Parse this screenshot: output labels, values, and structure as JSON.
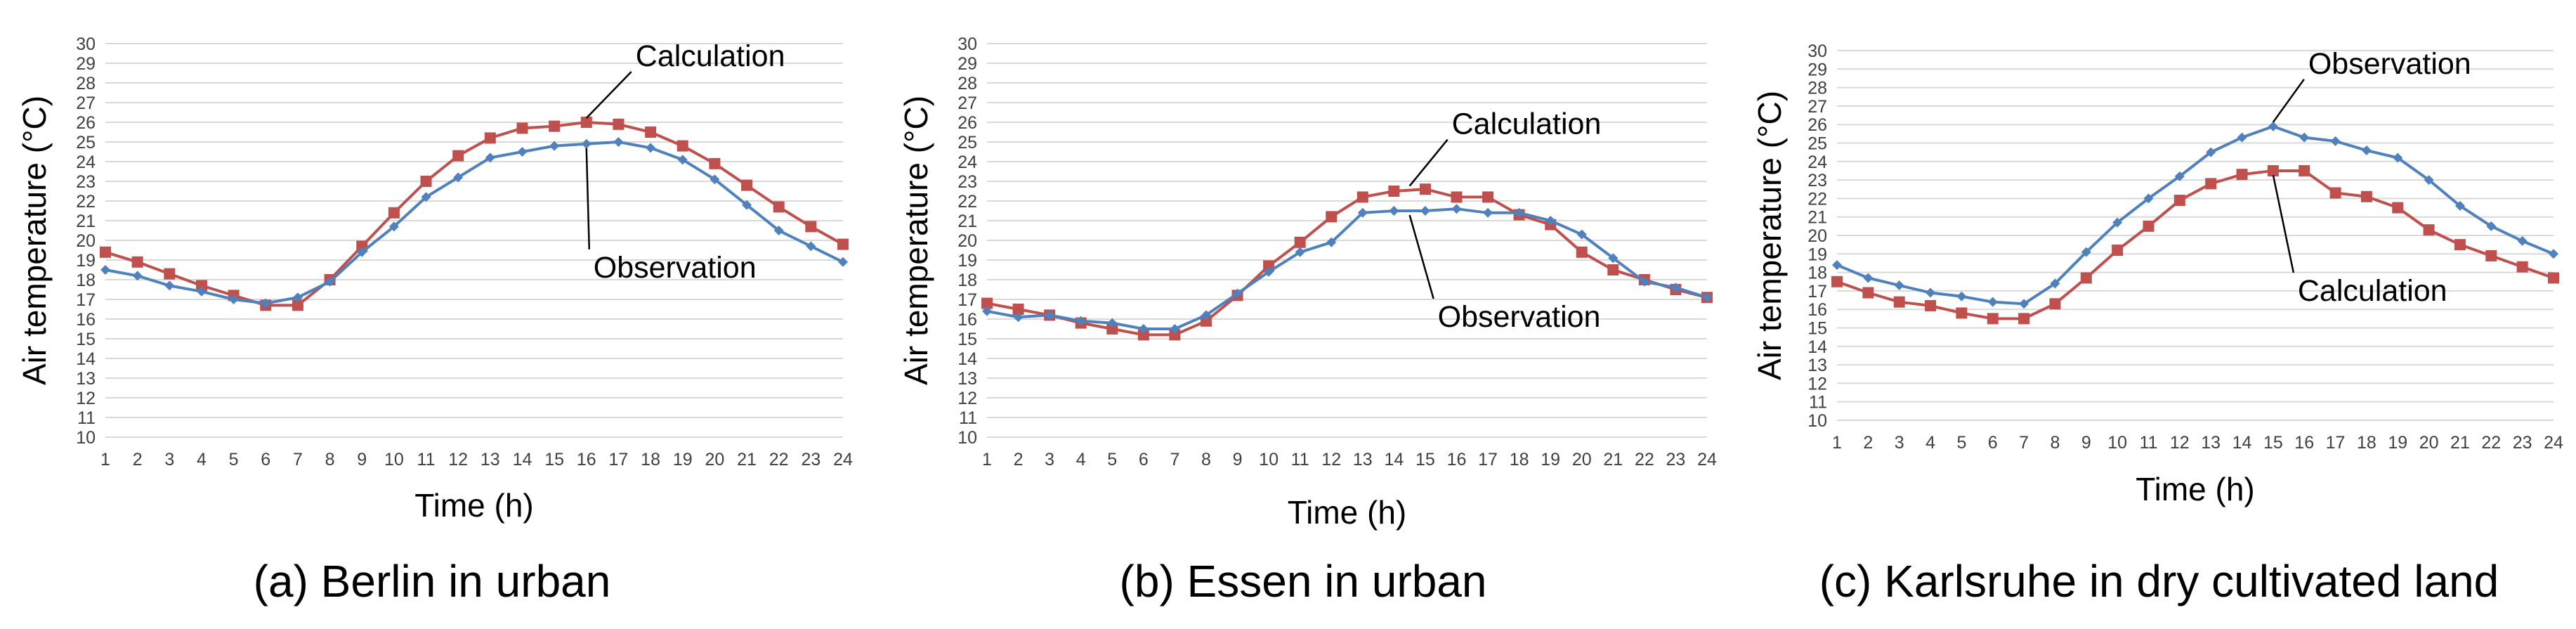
{
  "chart_data": [
    {
      "type": "line",
      "caption": "(a) Berlin in urban",
      "xlabel": "Time (h)",
      "ylabel": "Air temperature (°C)",
      "x": [
        1,
        2,
        3,
        4,
        5,
        6,
        7,
        8,
        9,
        10,
        11,
        12,
        13,
        14,
        15,
        16,
        17,
        18,
        19,
        20,
        21,
        22,
        23,
        24
      ],
      "ylim": [
        10,
        30
      ],
      "yticks": [
        10,
        11,
        12,
        13,
        14,
        15,
        16,
        17,
        18,
        19,
        20,
        21,
        22,
        23,
        24,
        25,
        26,
        27,
        28,
        29,
        30
      ],
      "grid": true,
      "series": [
        {
          "name": "Calculation",
          "color": "#C0504D",
          "marker": "square",
          "values": [
            19.4,
            18.9,
            18.3,
            17.7,
            17.2,
            16.7,
            16.7,
            18.0,
            19.7,
            21.4,
            23.0,
            24.3,
            25.2,
            25.7,
            25.8,
            26.0,
            25.9,
            25.5,
            24.8,
            23.9,
            22.8,
            21.7,
            20.7,
            19.8
          ]
        },
        {
          "name": "Observation",
          "color": "#4F81BD",
          "marker": "diamond",
          "values": [
            18.5,
            18.2,
            17.7,
            17.4,
            17.0,
            16.8,
            17.1,
            17.9,
            19.4,
            20.7,
            22.2,
            23.2,
            24.2,
            24.5,
            24.8,
            24.9,
            25.0,
            24.7,
            24.1,
            23.1,
            21.8,
            20.5,
            19.7,
            18.9
          ]
        }
      ],
      "annotations": [
        {
          "text": "Calculation",
          "series": "Calculation",
          "x": 16
        },
        {
          "text": "Observation",
          "series": "Observation",
          "x": 16
        }
      ]
    },
    {
      "type": "line",
      "caption": "(b) Essen in urban",
      "xlabel": "Time (h)",
      "ylabel": "Air temperature (°C)",
      "x": [
        1,
        2,
        3,
        4,
        5,
        6,
        7,
        8,
        9,
        10,
        11,
        12,
        13,
        14,
        15,
        16,
        17,
        18,
        19,
        20,
        21,
        22,
        23,
        24
      ],
      "ylim": [
        10,
        30
      ],
      "yticks": [
        10,
        11,
        12,
        13,
        14,
        15,
        16,
        17,
        18,
        19,
        20,
        21,
        22,
        23,
        24,
        25,
        26,
        27,
        28,
        29,
        30
      ],
      "grid": true,
      "series": [
        {
          "name": "Calculation",
          "color": "#C0504D",
          "marker": "square",
          "values": [
            16.8,
            16.5,
            16.2,
            15.8,
            15.5,
            15.2,
            15.2,
            15.9,
            17.2,
            18.7,
            19.9,
            21.2,
            22.2,
            22.5,
            22.6,
            22.2,
            22.2,
            21.3,
            20.8,
            19.4,
            18.5,
            18.0,
            17.5,
            17.1
          ]
        },
        {
          "name": "Observation",
          "color": "#4F81BD",
          "marker": "diamond",
          "values": [
            16.4,
            16.1,
            16.2,
            15.9,
            15.8,
            15.5,
            15.5,
            16.2,
            17.3,
            18.4,
            19.4,
            19.9,
            21.4,
            21.5,
            21.5,
            21.6,
            21.4,
            21.4,
            21.0,
            20.3,
            19.1,
            17.9,
            17.6,
            17.1
          ]
        }
      ],
      "annotations": [
        {
          "text": "Calculation",
          "series": "Calculation",
          "x": 14.5
        },
        {
          "text": "Observation",
          "series": "Observation",
          "x": 14.5
        }
      ]
    },
    {
      "type": "line",
      "caption": "(c) Karlsruhe in dry cultivated land",
      "xlabel": "Time (h)",
      "ylabel": "Air temperature (°C)",
      "x": [
        1,
        2,
        3,
        4,
        5,
        6,
        7,
        8,
        9,
        10,
        11,
        12,
        13,
        14,
        15,
        16,
        17,
        18,
        19,
        20,
        21,
        22,
        23,
        24
      ],
      "ylim": [
        10,
        30
      ],
      "yticks": [
        10,
        11,
        12,
        13,
        14,
        15,
        16,
        17,
        18,
        19,
        20,
        21,
        22,
        23,
        24,
        25,
        26,
        27,
        28,
        29,
        30
      ],
      "grid": true,
      "series": [
        {
          "name": "Calculation",
          "color": "#C0504D",
          "marker": "square",
          "values": [
            17.5,
            16.9,
            16.4,
            16.2,
            15.8,
            15.5,
            15.5,
            16.3,
            17.7,
            19.2,
            20.5,
            21.9,
            22.8,
            23.3,
            23.5,
            23.5,
            22.3,
            22.1,
            21.5,
            20.3,
            19.5,
            18.9,
            18.3,
            17.7
          ]
        },
        {
          "name": "Observation",
          "color": "#4F81BD",
          "marker": "diamond",
          "values": [
            18.4,
            17.7,
            17.3,
            16.9,
            16.7,
            16.4,
            16.3,
            17.4,
            19.1,
            20.7,
            22.0,
            23.2,
            24.5,
            25.3,
            25.9,
            25.3,
            25.1,
            24.6,
            24.2,
            23.0,
            21.6,
            20.5,
            19.7,
            19.0
          ]
        }
      ],
      "annotations": [
        {
          "text": "Observation",
          "series": "Observation",
          "x": 15
        },
        {
          "text": "Calculation",
          "series": "Calculation",
          "x": 15
        }
      ]
    }
  ]
}
